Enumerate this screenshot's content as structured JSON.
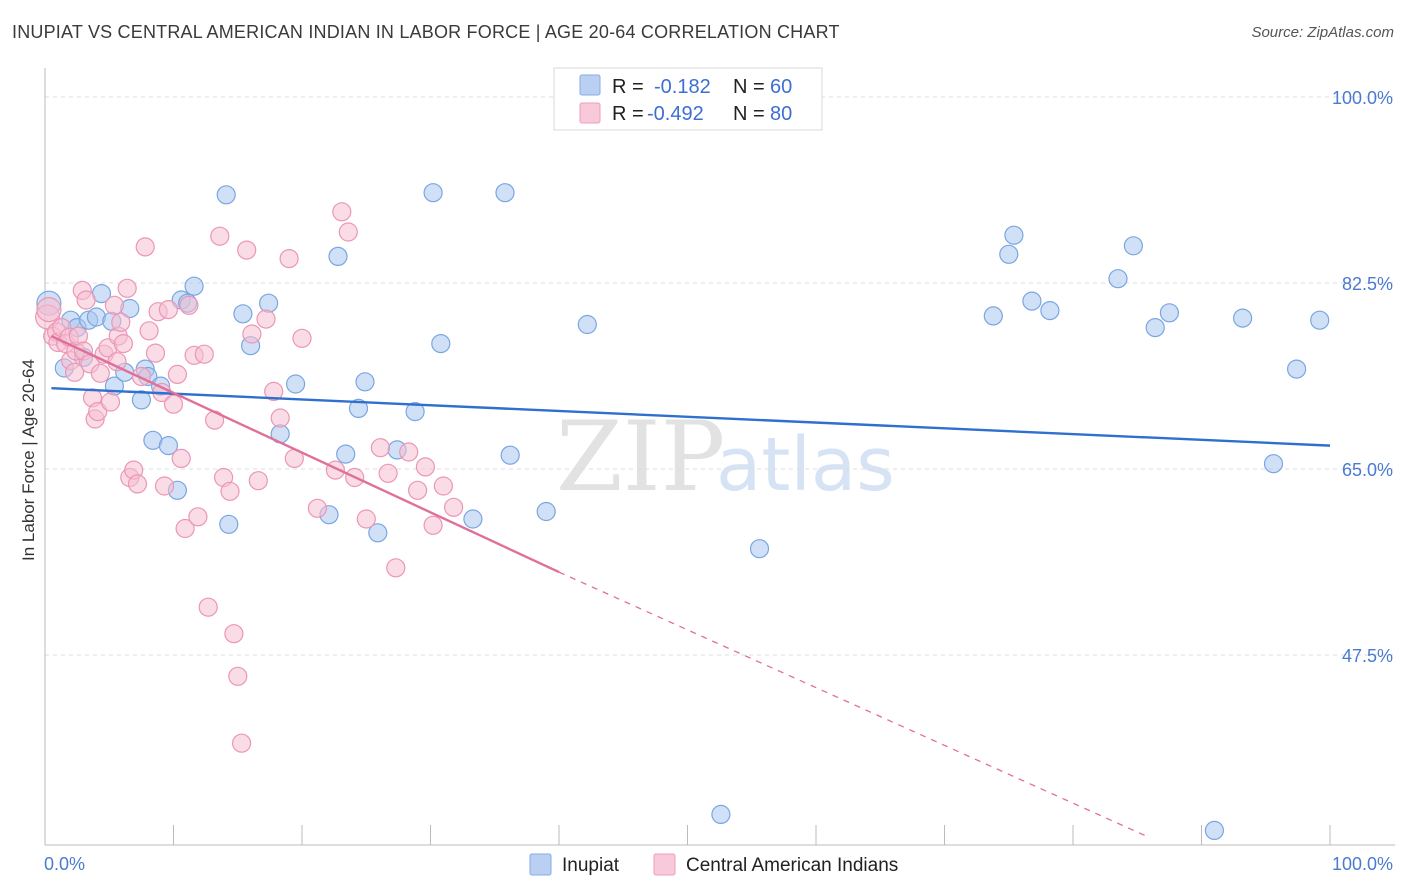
{
  "header": {
    "title": "INUPIAT VS CENTRAL AMERICAN INDIAN IN LABOR FORCE | AGE 20-64 CORRELATION CHART",
    "source": "Source: ZipAtlas.com"
  },
  "watermark": {
    "zip": "ZIP",
    "atlas": "atlas"
  },
  "legend_box": {
    "rows": [
      {
        "r_label": "R =",
        "r_value": "-0.182",
        "n_label": "N =",
        "n_value": "60"
      },
      {
        "r_label": "R =",
        "r_value": "-0.492",
        "n_label": "N =",
        "n_value": "80"
      }
    ]
  },
  "chart_data": {
    "type": "scatter",
    "title": "INUPIAT VS CENTRAL AMERICAN INDIAN IN LABOR FORCE | AGE 20-64 CORRELATION CHART",
    "xlabel": "",
    "ylabel": "In Labor Force | Age 20-64",
    "xlim": [
      0,
      100
    ],
    "ylim": [
      30,
      100
    ],
    "x_tick_labels": [
      "0.0%",
      "100.0%"
    ],
    "y_ticks": [
      47.5,
      65.0,
      82.5,
      100.0
    ],
    "y_tick_labels": [
      "47.5%",
      "65.0%",
      "82.5%",
      "100.0%"
    ],
    "grid": true,
    "legend_position": "bottom",
    "series": [
      {
        "name": "Inupiat",
        "color": "#a9c7f0",
        "edge": "#7aa6e0",
        "line_color": "#2f6fd0",
        "r": -0.182,
        "n": 60,
        "trend": {
          "x0": 0.5,
          "y0": 72.6,
          "x1": 100,
          "y1": 67.2,
          "dashed_from": null
        },
        "points": [
          [
            0.3,
            80.6
          ],
          [
            1.5,
            74.5
          ],
          [
            2.0,
            79.0
          ],
          [
            2.5,
            78.3
          ],
          [
            3.0,
            75.5
          ],
          [
            3.4,
            79.0
          ],
          [
            4.0,
            79.3
          ],
          [
            4.4,
            81.5
          ],
          [
            5.2,
            78.9
          ],
          [
            5.4,
            72.8
          ],
          [
            6.2,
            74.1
          ],
          [
            6.6,
            80.1
          ],
          [
            7.5,
            71.5
          ],
          [
            7.8,
            74.4
          ],
          [
            8.0,
            73.7
          ],
          [
            8.4,
            67.7
          ],
          [
            9.0,
            72.8
          ],
          [
            9.6,
            67.2
          ],
          [
            10.3,
            63.0
          ],
          [
            10.6,
            80.9
          ],
          [
            11.1,
            80.6
          ],
          [
            11.6,
            82.2
          ],
          [
            14.1,
            90.8
          ],
          [
            14.3,
            59.8
          ],
          [
            15.4,
            79.6
          ],
          [
            16.0,
            76.6
          ],
          [
            17.4,
            80.6
          ],
          [
            18.3,
            68.3
          ],
          [
            19.5,
            73.0
          ],
          [
            22.1,
            60.7
          ],
          [
            22.8,
            85.0
          ],
          [
            23.4,
            66.4
          ],
          [
            24.4,
            70.7
          ],
          [
            24.9,
            73.2
          ],
          [
            25.9,
            59.0
          ],
          [
            27.4,
            66.8
          ],
          [
            28.8,
            70.4
          ],
          [
            30.2,
            91.0
          ],
          [
            30.8,
            76.8
          ],
          [
            33.3,
            60.3
          ],
          [
            35.8,
            91.0
          ],
          [
            36.2,
            66.3
          ],
          [
            39.0,
            61.0
          ],
          [
            42.2,
            78.6
          ],
          [
            52.6,
            32.5
          ],
          [
            55.6,
            57.5
          ],
          [
            73.8,
            79.4
          ],
          [
            75.0,
            85.2
          ],
          [
            75.4,
            87.0
          ],
          [
            76.8,
            80.8
          ],
          [
            78.2,
            79.9
          ],
          [
            83.5,
            82.9
          ],
          [
            84.7,
            86.0
          ],
          [
            86.4,
            78.3
          ],
          [
            87.5,
            79.7
          ],
          [
            91.0,
            31.0
          ],
          [
            93.2,
            79.2
          ],
          [
            95.6,
            65.5
          ],
          [
            97.4,
            74.4
          ],
          [
            99.2,
            79.0
          ]
        ]
      },
      {
        "name": "Central American Indians",
        "color": "#f5bfd2",
        "edge": "#ec96b5",
        "line_color": "#e0709a",
        "r": -0.492,
        "n": 80,
        "trend": {
          "x0": 0.5,
          "y0": 77.5,
          "x1": 40.0,
          "y1": 55.3,
          "dashed_from": 40.0,
          "dashed_x1": 86.0,
          "dashed_y1": 30.3
        },
        "points": [
          [
            0.2,
            79.3
          ],
          [
            0.3,
            80.0
          ],
          [
            0.6,
            77.5
          ],
          [
            0.9,
            77.9
          ],
          [
            1.0,
            76.9
          ],
          [
            1.3,
            78.3
          ],
          [
            1.6,
            76.8
          ],
          [
            1.9,
            77.4
          ],
          [
            2.0,
            75.2
          ],
          [
            2.3,
            74.1
          ],
          [
            2.4,
            76.1
          ],
          [
            2.6,
            77.5
          ],
          [
            2.9,
            81.8
          ],
          [
            3.0,
            76.1
          ],
          [
            3.2,
            80.9
          ],
          [
            3.5,
            74.9
          ],
          [
            3.7,
            71.7
          ],
          [
            3.9,
            69.7
          ],
          [
            4.1,
            70.4
          ],
          [
            4.3,
            74.0
          ],
          [
            4.6,
            75.8
          ],
          [
            4.9,
            76.4
          ],
          [
            5.1,
            71.3
          ],
          [
            5.4,
            80.4
          ],
          [
            5.6,
            75.1
          ],
          [
            5.7,
            77.5
          ],
          [
            5.9,
            78.8
          ],
          [
            6.1,
            76.8
          ],
          [
            6.4,
            82.0
          ],
          [
            6.6,
            64.2
          ],
          [
            6.9,
            64.9
          ],
          [
            7.2,
            63.6
          ],
          [
            7.5,
            73.7
          ],
          [
            7.8,
            85.9
          ],
          [
            8.1,
            78.0
          ],
          [
            8.6,
            75.9
          ],
          [
            8.8,
            79.8
          ],
          [
            9.1,
            72.2
          ],
          [
            9.3,
            63.4
          ],
          [
            9.6,
            80.0
          ],
          [
            10.0,
            71.1
          ],
          [
            10.3,
            73.9
          ],
          [
            10.6,
            66.0
          ],
          [
            10.9,
            59.4
          ],
          [
            11.2,
            80.4
          ],
          [
            11.6,
            75.7
          ],
          [
            11.9,
            60.5
          ],
          [
            12.4,
            75.8
          ],
          [
            12.7,
            52.0
          ],
          [
            13.2,
            69.6
          ],
          [
            13.6,
            86.9
          ],
          [
            13.9,
            64.2
          ],
          [
            14.4,
            62.9
          ],
          [
            14.7,
            49.5
          ],
          [
            15.0,
            45.5
          ],
          [
            15.3,
            39.2
          ],
          [
            15.7,
            85.6
          ],
          [
            16.1,
            77.7
          ],
          [
            16.6,
            63.9
          ],
          [
            17.2,
            79.1
          ],
          [
            17.8,
            72.3
          ],
          [
            18.3,
            69.8
          ],
          [
            19.0,
            84.8
          ],
          [
            19.4,
            66.0
          ],
          [
            20.0,
            77.3
          ],
          [
            21.2,
            61.3
          ],
          [
            22.6,
            64.9
          ],
          [
            23.1,
            89.2
          ],
          [
            23.6,
            87.3
          ],
          [
            24.1,
            64.2
          ],
          [
            25.0,
            60.3
          ],
          [
            26.1,
            67.0
          ],
          [
            26.7,
            64.6
          ],
          [
            27.3,
            55.7
          ],
          [
            28.3,
            66.6
          ],
          [
            29.0,
            63.0
          ],
          [
            29.6,
            65.2
          ],
          [
            30.2,
            59.7
          ],
          [
            31.0,
            63.4
          ],
          [
            31.8,
            61.4
          ]
        ]
      }
    ]
  }
}
